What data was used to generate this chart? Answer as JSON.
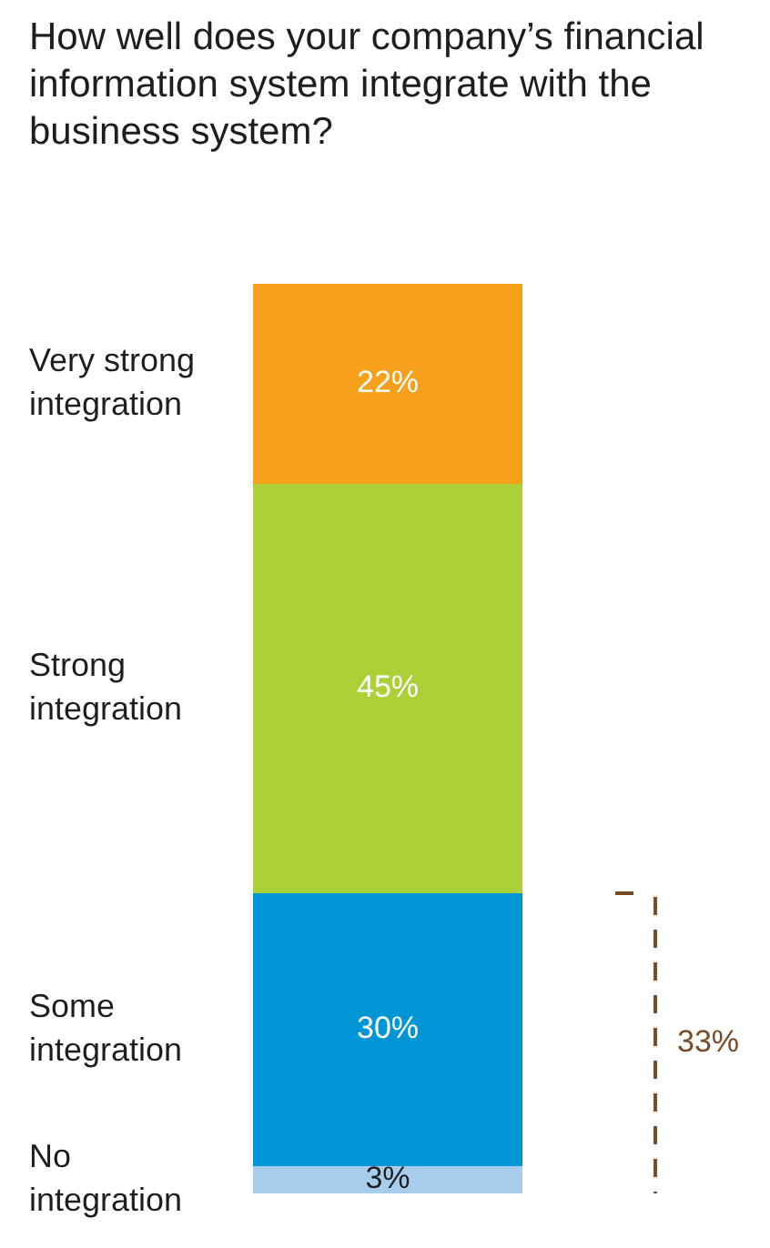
{
  "chart_data": {
    "type": "bar",
    "title": "How well does your company’s financial information system integrate with the business system?",
    "categories": [
      null
    ],
    "stacked": true,
    "tick_labels": false,
    "series": [
      {
        "name": "No integration",
        "color": "#a8cdec",
        "values": [
          3
        ],
        "value_labels": [
          "3%"
        ]
      },
      {
        "name": "Some integration",
        "color": "#0096d6",
        "values": [
          30
        ],
        "value_labels": [
          "30%"
        ]
      },
      {
        "name": "Strong integration",
        "color": "#acd037",
        "values": [
          45
        ],
        "value_labels": [
          "45%"
        ]
      },
      {
        "name": "Very strong integration",
        "color": "#f6a01b",
        "values": [
          22
        ],
        "value_labels": [
          "22%"
        ]
      }
    ],
    "annotations": [
      "33%"
    ]
  }
}
